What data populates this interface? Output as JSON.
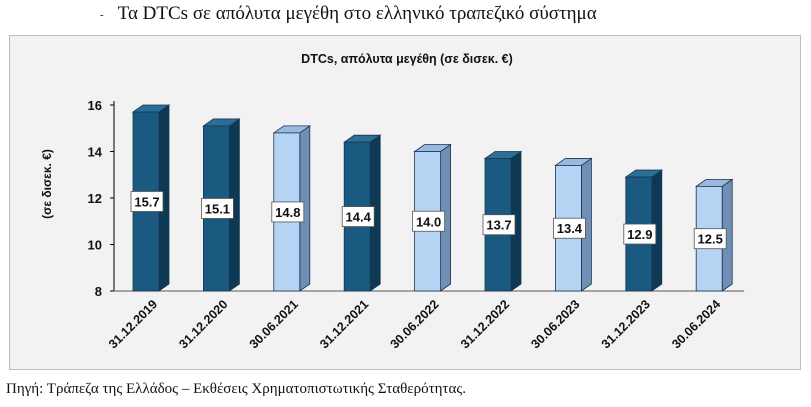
{
  "heading": {
    "bullet": "-",
    "text": "Τα DTCs σε απόλυτα μεγέθη στο ελληνικό τραπεζικό σύστημα"
  },
  "source": "Πηγή: Τράπεζα της Ελλάδος – Εκθέσεις Χρηματοπιστωτικής Σταθερότητας.",
  "chart_data": {
    "type": "bar",
    "title": "DTCs, απόλυτα μεγέθη (σε δισεκ. €)",
    "ylabel": "(σε δισεκ. €)",
    "xlabel": "",
    "categories": [
      "31.12.2019",
      "31.12.2020",
      "30.06.2021",
      "31.12.2021",
      "30.06.2022",
      "31.12.2022",
      "30.06.2023",
      "31.12.2023",
      "30.06.2024"
    ],
    "values": [
      15.7,
      15.1,
      14.8,
      14.4,
      14.0,
      13.7,
      13.4,
      12.9,
      12.5
    ],
    "value_labels": [
      "15.7",
      "15.1",
      "14.8",
      "14.4",
      "14.0",
      "13.7",
      "13.4",
      "12.9",
      "12.5"
    ],
    "ylim": [
      8,
      16
    ],
    "yticks": [
      8,
      10,
      12,
      14,
      16
    ],
    "ytick_labels": [
      "8",
      "10",
      "12",
      "14",
      "16"
    ],
    "grid": false,
    "legend": "none",
    "colors": {
      "dec_front": "#1a5a80",
      "dec_side": "#0e3954",
      "dec_top": "#2a6f98",
      "jun_front": "#b5d3f2",
      "jun_side": "#6f8fb5",
      "jun_top": "#9ab9df",
      "edge": "#1c3550"
    },
    "bar_color_keys": [
      "dec",
      "dec",
      "jun",
      "dec",
      "jun",
      "dec",
      "jun",
      "dec",
      "jun"
    ]
  }
}
